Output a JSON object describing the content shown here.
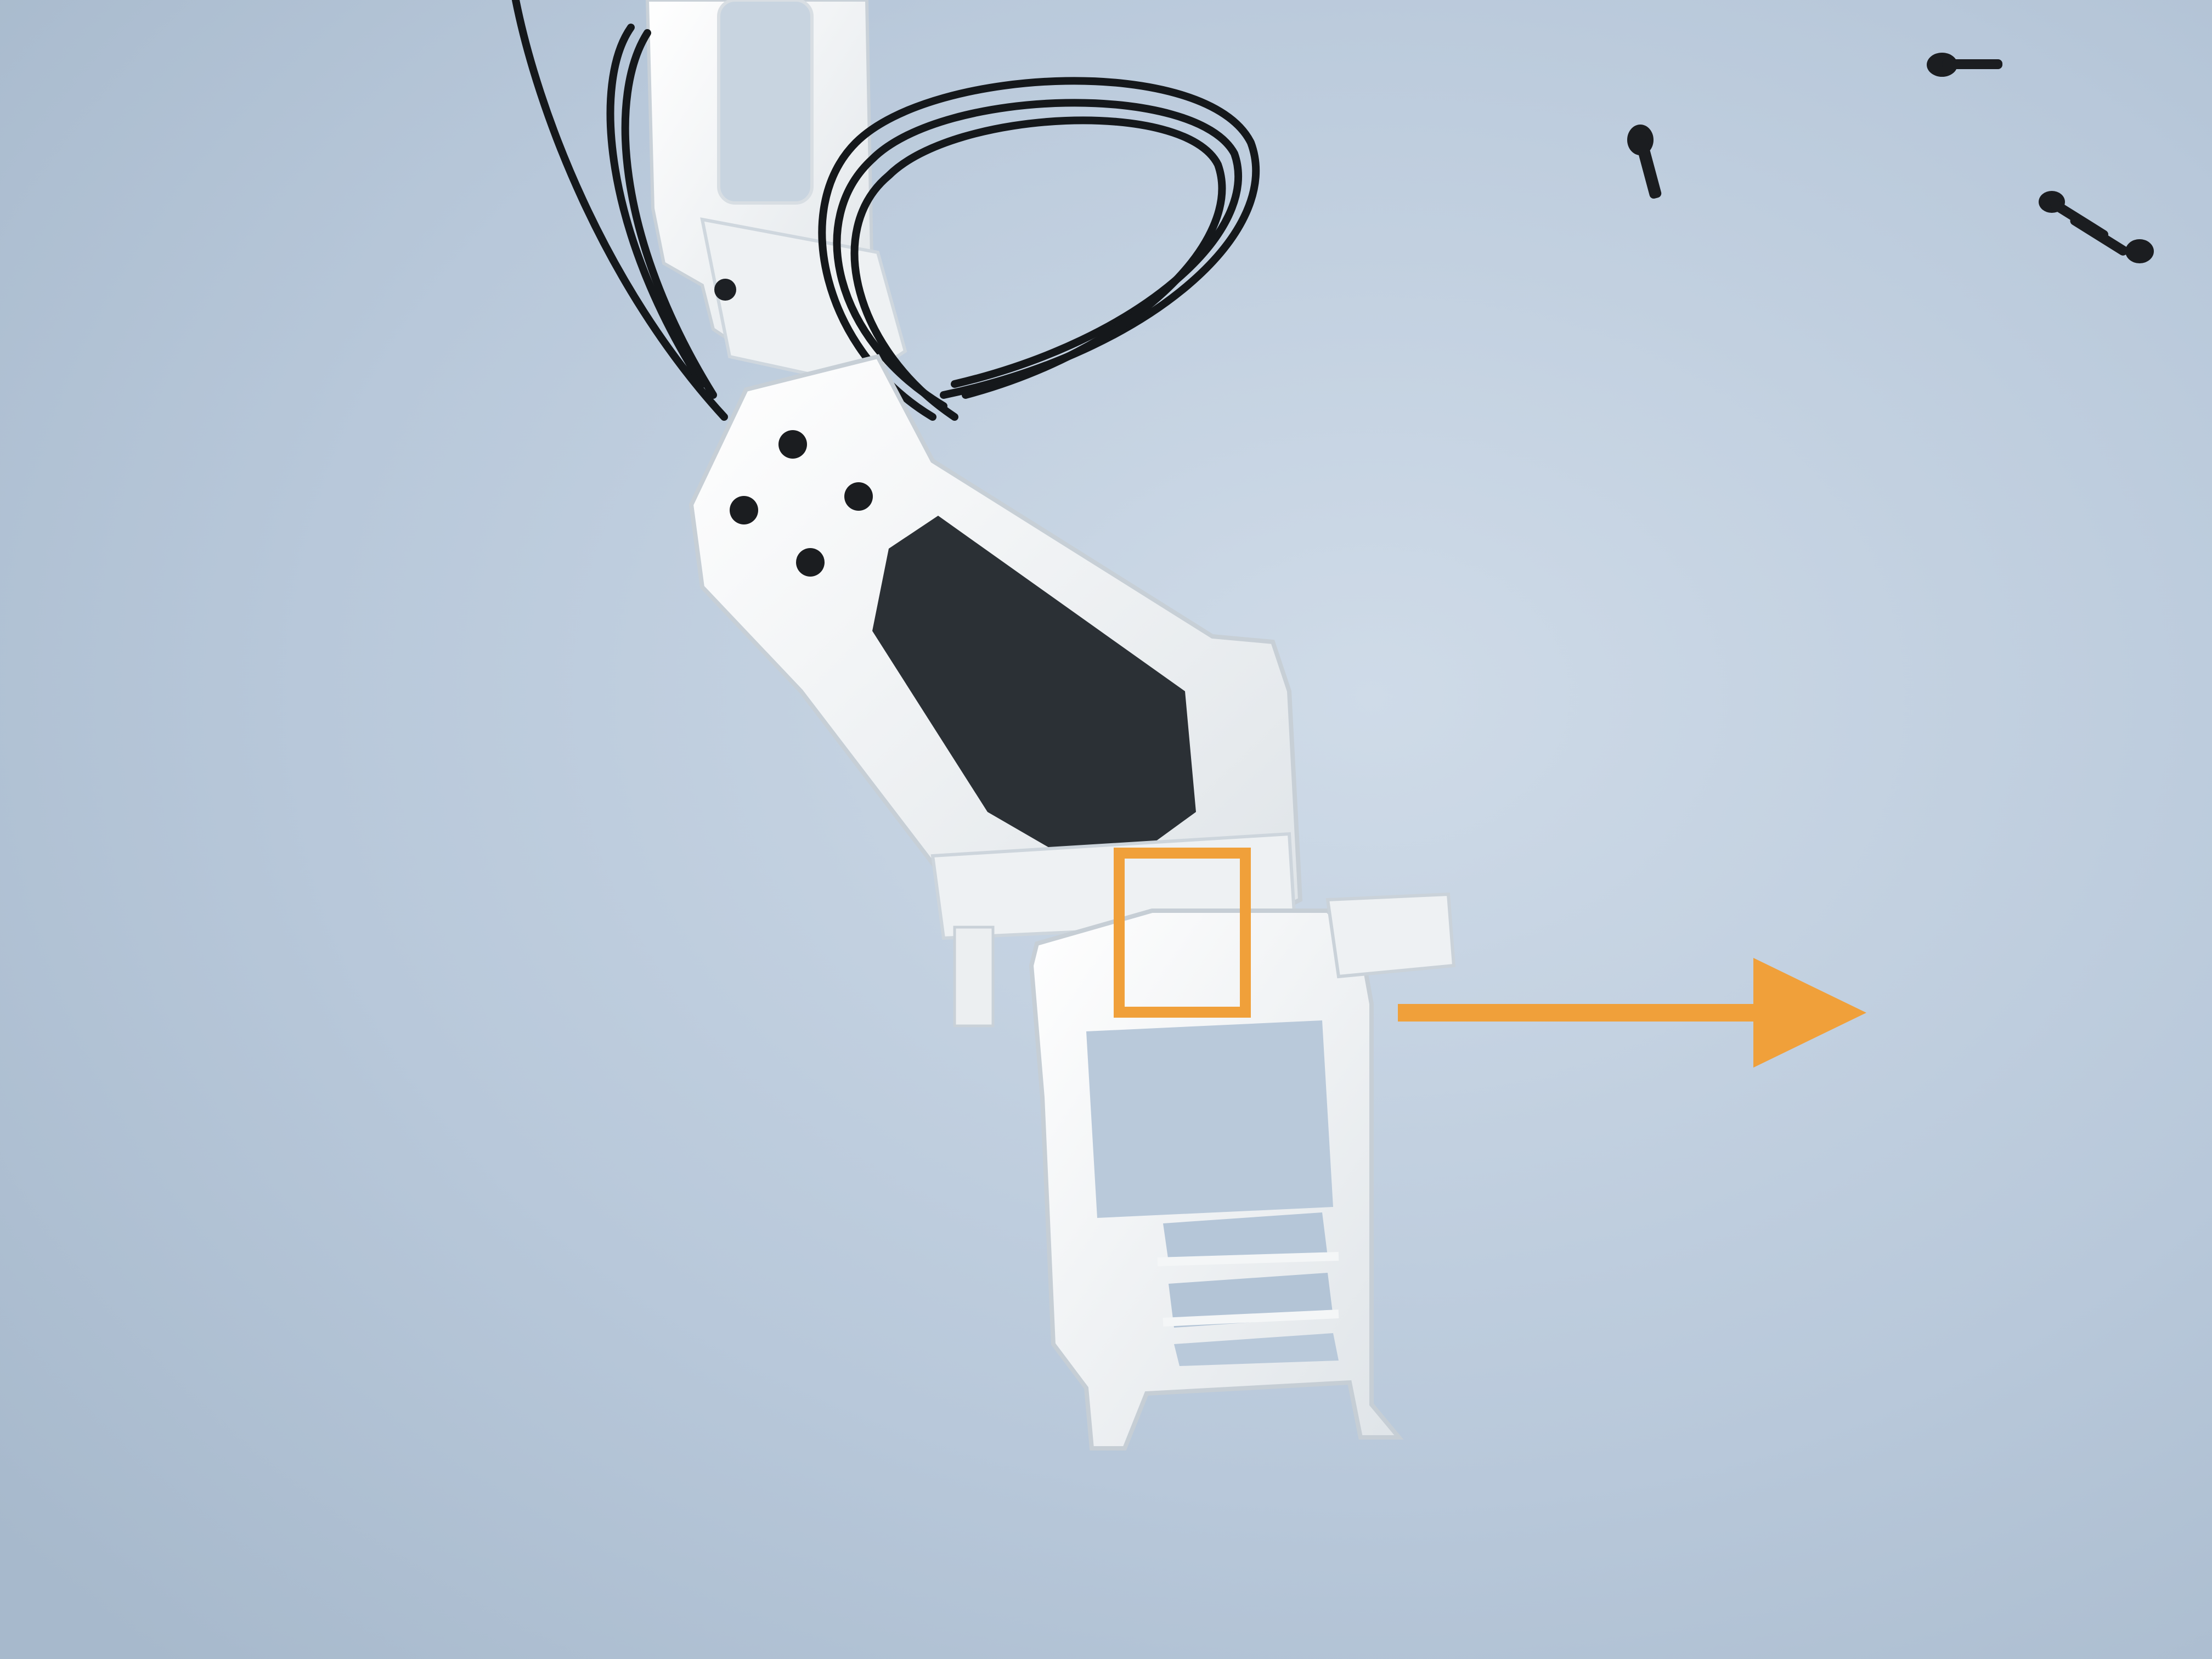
{
  "photo": {
    "subject": "3d-printed-robot-arm-joint",
    "colors": {
      "background_light": "#cfdbe8",
      "background_mid": "#b8c8da",
      "background_dark": "#a7b9cc",
      "plastic_white": "#f1f3f4",
      "plastic_shadow": "#d3dade",
      "servo_black": "#2b3035",
      "cable_black": "#15181b",
      "screw_black": "#1b1d20"
    }
  },
  "annotations": {
    "highlight_box": {
      "name": "highlight-box",
      "color": "#f0a03a"
    },
    "arrow": {
      "name": "direction-arrow",
      "color": "#f0a03a",
      "direction": "right"
    }
  }
}
